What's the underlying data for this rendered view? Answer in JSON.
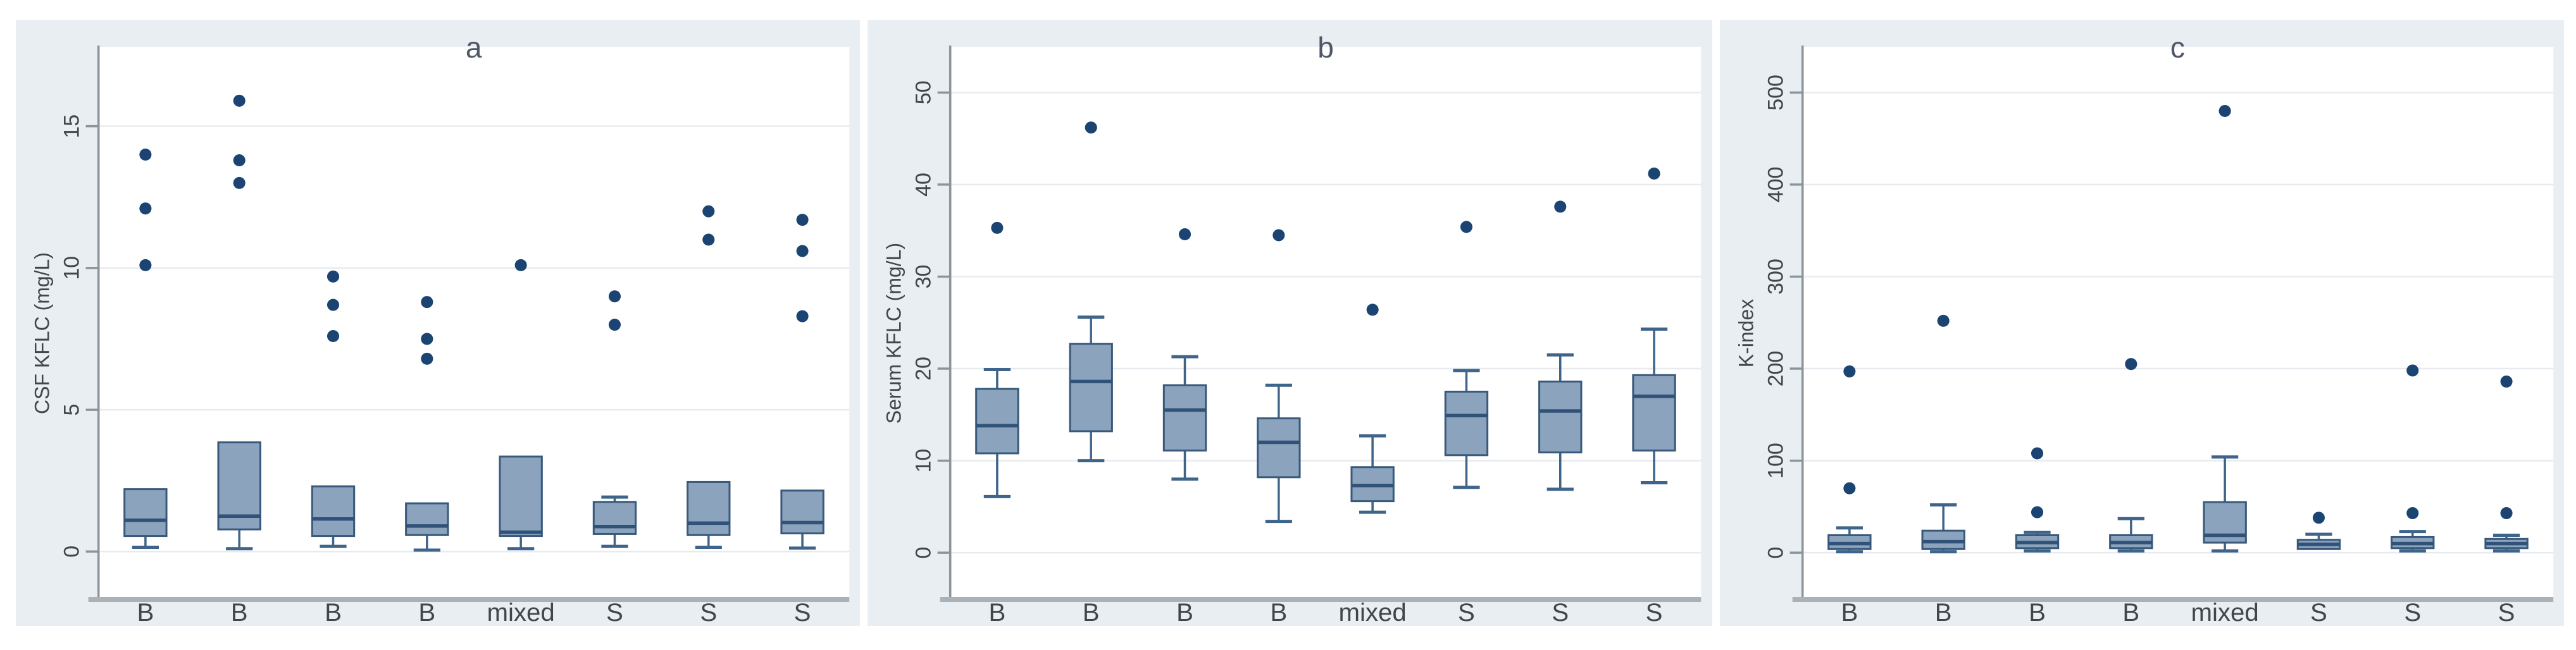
{
  "figure": {
    "kind": "three-panel box plot figure",
    "panel_titles": [
      "a",
      "b",
      "c"
    ]
  },
  "style": {
    "page_bg": "#ffffff",
    "card_bg": "#e9eef3",
    "plot_bg": "#ffffff",
    "grid_color": "#e7ebef",
    "axis_color": "#8d9499",
    "baseline_color": "#abb2b7",
    "box_fill": "#8ba3bc",
    "box_border": "#38597c",
    "median_color": "#315278",
    "whisker_color": "#3f648a",
    "outlier_color": "#1b4472",
    "text_color": "#42464b",
    "title_color": "#4e5866"
  },
  "chart_data": [
    {
      "type": "box",
      "title": "a",
      "ylabel": "CSF KFLC (mg/L)",
      "yticks": [
        0,
        5,
        10,
        15
      ],
      "ylim": [
        -1.6,
        17.0
      ],
      "grid": true,
      "legend": "none",
      "categories": [
        "B",
        "B",
        "B",
        "B",
        "mixed",
        "S",
        "S",
        "S"
      ],
      "boxes": [
        {
          "whislo": 0.15,
          "q1": 0.55,
          "med": 1.1,
          "q3": 2.2,
          "whishi": 2.2,
          "outliers": [
            10.1,
            12.1,
            14.0
          ]
        },
        {
          "whislo": 0.1,
          "q1": 0.78,
          "med": 1.25,
          "q3": 3.85,
          "whishi": 3.85,
          "outliers": [
            13.0,
            13.8,
            15.9
          ]
        },
        {
          "whislo": 0.18,
          "q1": 0.55,
          "med": 1.15,
          "q3": 2.3,
          "whishi": 2.3,
          "outliers": [
            7.6,
            8.7,
            9.7
          ]
        },
        {
          "whislo": 0.05,
          "q1": 0.58,
          "med": 0.9,
          "q3": 1.7,
          "whishi": 1.7,
          "outliers": [
            6.8,
            7.5,
            8.8
          ]
        },
        {
          "whislo": 0.1,
          "q1": 0.55,
          "med": 0.68,
          "q3": 3.35,
          "whishi": 3.35,
          "outliers": [
            10.1
          ]
        },
        {
          "whislo": 0.18,
          "q1": 0.62,
          "med": 0.88,
          "q3": 1.75,
          "whishi": 1.92,
          "outliers": [
            8.0,
            9.0
          ]
        },
        {
          "whislo": 0.15,
          "q1": 0.58,
          "med": 1.0,
          "q3": 2.45,
          "whishi": 2.45,
          "outliers": [
            11.0,
            12.0
          ]
        },
        {
          "whislo": 0.12,
          "q1": 0.64,
          "med": 1.02,
          "q3": 2.15,
          "whishi": 2.15,
          "outliers": [
            8.3,
            10.6,
            11.7
          ]
        }
      ]
    },
    {
      "type": "box",
      "title": "b",
      "ylabel": "Serum KFLC (mg/L)",
      "yticks": [
        0,
        10,
        20,
        30,
        40,
        50
      ],
      "ylim": [
        -4.8,
        52.5
      ],
      "grid": true,
      "legend": "none",
      "categories": [
        "B",
        "B",
        "B",
        "B",
        "mixed",
        "S",
        "S",
        "S"
      ],
      "boxes": [
        {
          "whislo": 6.1,
          "q1": 10.8,
          "med": 13.8,
          "q3": 17.8,
          "whishi": 19.9,
          "outliers": [
            35.3
          ]
        },
        {
          "whislo": 10.0,
          "q1": 13.2,
          "med": 18.6,
          "q3": 22.7,
          "whishi": 25.6,
          "outliers": [
            46.2
          ]
        },
        {
          "whislo": 8.0,
          "q1": 11.1,
          "med": 15.5,
          "q3": 18.2,
          "whishi": 21.3,
          "outliers": [
            34.6
          ]
        },
        {
          "whislo": 3.4,
          "q1": 8.2,
          "med": 12.0,
          "q3": 14.6,
          "whishi": 18.2,
          "outliers": [
            34.5
          ]
        },
        {
          "whislo": 4.4,
          "q1": 5.6,
          "med": 7.3,
          "q3": 9.3,
          "whishi": 12.7,
          "outliers": [
            26.4
          ]
        },
        {
          "whislo": 7.1,
          "q1": 10.6,
          "med": 14.9,
          "q3": 17.5,
          "whishi": 19.8,
          "outliers": [
            35.4
          ]
        },
        {
          "whislo": 6.9,
          "q1": 10.9,
          "med": 15.4,
          "q3": 18.6,
          "whishi": 21.5,
          "outliers": [
            37.6
          ]
        },
        {
          "whislo": 7.6,
          "q1": 11.1,
          "med": 17.0,
          "q3": 19.3,
          "whishi": 24.3,
          "outliers": [
            41.2
          ]
        }
      ]
    },
    {
      "type": "box",
      "title": "c",
      "ylabel": "K-index",
      "yticks": [
        0,
        100,
        200,
        300,
        400,
        500
      ],
      "ylim": [
        -48,
        525
      ],
      "grid": true,
      "legend": "none",
      "categories": [
        "B",
        "B",
        "B",
        "B",
        "mixed",
        "S",
        "S",
        "S"
      ],
      "boxes": [
        {
          "whislo": 1,
          "q1": 4,
          "med": 10,
          "q3": 19,
          "whishi": 27,
          "outliers": [
            70,
            197
          ]
        },
        {
          "whislo": 1,
          "q1": 4,
          "med": 12,
          "q3": 24,
          "whishi": 52,
          "outliers": [
            252
          ]
        },
        {
          "whislo": 2,
          "q1": 5,
          "med": 11,
          "q3": 19,
          "whishi": 22,
          "outliers": [
            44,
            108
          ]
        },
        {
          "whislo": 2,
          "q1": 5,
          "med": 11,
          "q3": 19,
          "whishi": 37,
          "outliers": [
            205
          ]
        },
        {
          "whislo": 2,
          "q1": 11,
          "med": 19,
          "q3": 55,
          "whishi": 104,
          "outliers": [
            480
          ]
        },
        {
          "whislo": 2,
          "q1": 4,
          "med": 9,
          "q3": 14,
          "whishi": 20,
          "outliers": [
            38
          ]
        },
        {
          "whislo": 2,
          "q1": 5,
          "med": 10,
          "q3": 17,
          "whishi": 23,
          "outliers": [
            43,
            198
          ]
        },
        {
          "whislo": 2,
          "q1": 5,
          "med": 10,
          "q3": 15,
          "whishi": 19,
          "outliers": [
            43,
            186
          ]
        }
      ]
    }
  ]
}
